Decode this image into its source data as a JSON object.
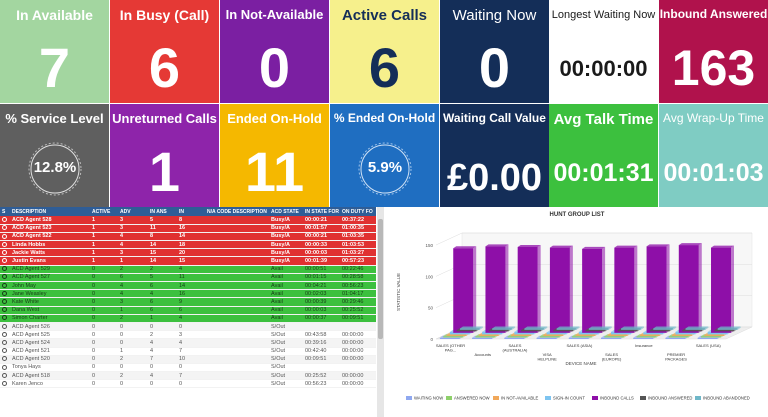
{
  "tiles": [
    {
      "id": "in-available",
      "label": "In Available",
      "value": "7",
      "bg": "#a3d6a0"
    },
    {
      "id": "in-busy",
      "label": "In Busy (Call)",
      "value": "6",
      "bg": "#e53935"
    },
    {
      "id": "in-not-available",
      "label": "In Not-Available",
      "value": "0",
      "bg": "#7b1fa2"
    },
    {
      "id": "active-calls",
      "label": "Active Calls",
      "value": "6",
      "bg": "#f6f08c"
    },
    {
      "id": "waiting-now",
      "label": "Waiting Now",
      "value": "0",
      "bg": "#142e58"
    },
    {
      "id": "longest-waiting-now",
      "label": "Longest Waiting Now",
      "value": "00:00:00",
      "bg": "#ffffff"
    },
    {
      "id": "inbound-answered",
      "label": "Inbound Answered",
      "value": "163",
      "bg": "#b0124c"
    },
    {
      "id": "service-level",
      "label": "% Service Level",
      "value": "12.8%",
      "bg": "#5f5f5f"
    },
    {
      "id": "unreturned-calls",
      "label": "Unreturned Calls",
      "value": "1",
      "bg": "#8e24aa"
    },
    {
      "id": "ended-on-hold",
      "label": "Ended On-Hold",
      "value": "11",
      "bg": "#f5b800"
    },
    {
      "id": "ended-on-hold-pct",
      "label": "% Ended On-Hold",
      "value": "5.9%",
      "bg": "#1f6ec1"
    },
    {
      "id": "waiting-call-value",
      "label": "Waiting Call Value",
      "value": "£0.00",
      "bg": "#142e58"
    },
    {
      "id": "avg-talk-time",
      "label": "Avg Talk Time",
      "value": "00:01:31",
      "bg": "#3cc03e"
    },
    {
      "id": "avg-wrap-up-time",
      "label": "Avg Wrap-Up Time",
      "value": "00:01:03",
      "bg": "#7fccc3"
    }
  ],
  "table": {
    "columns": [
      "S",
      "DESCRIPTION",
      "ACTIVE",
      "ADV",
      "IN ANS",
      "IN",
      "N/A CODE DESCRIPTION",
      "ACD STATE",
      "IN STATE FOR",
      "ON DUTY FO"
    ],
    "rows": [
      {
        "state": "busy",
        "cells": [
          "",
          "ACD Agent 528",
          "1",
          "3",
          "5",
          "8",
          "",
          "Busy/A",
          "00:00:21",
          "00:37:22"
        ]
      },
      {
        "state": "busy",
        "cells": [
          "",
          "ACD Agent 523",
          "1",
          "3",
          "11",
          "16",
          "",
          "Busy/A",
          "00:01:57",
          "01:00:35"
        ]
      },
      {
        "state": "busy",
        "cells": [
          "",
          "ACD Agent 522",
          "1",
          "4",
          "8",
          "14",
          "",
          "Busy/A",
          "00:00:21",
          "01:03:35"
        ]
      },
      {
        "state": "busy",
        "cells": [
          "",
          "Linda Hobbs",
          "1",
          "4",
          "14",
          "18",
          "",
          "Busy/A",
          "00:00:33",
          "01:03:53"
        ]
      },
      {
        "state": "busy",
        "cells": [
          "",
          "Jackie Watts",
          "1",
          "3",
          "15",
          "20",
          "",
          "Busy/A",
          "00:00:03",
          "01:03:27"
        ]
      },
      {
        "state": "busy",
        "cells": [
          "",
          "Justin Evans",
          "1",
          "1",
          "14",
          "15",
          "",
          "Busy/A",
          "00:01:39",
          "00:57:23"
        ]
      },
      {
        "state": "avail",
        "cells": [
          "",
          "ACD Agent 529",
          "0",
          "2",
          "2",
          "4",
          "",
          "Avail",
          "00:00:51",
          "00:22:46"
        ]
      },
      {
        "state": "avail",
        "cells": [
          "",
          "ACD Agent 527",
          "0",
          "6",
          "5",
          "11",
          "",
          "Avail",
          "00:01:15",
          "00:28:58"
        ]
      },
      {
        "state": "avail",
        "cells": [
          "",
          "John May",
          "0",
          "4",
          "6",
          "14",
          "",
          "Avail",
          "00:04:21",
          "00:56:23"
        ]
      },
      {
        "state": "avail",
        "cells": [
          "",
          "Jane Weasley",
          "0",
          "4",
          "4",
          "16",
          "",
          "Avail",
          "00:02:03",
          "01:04:17"
        ]
      },
      {
        "state": "avail",
        "cells": [
          "",
          "Kate White",
          "0",
          "3",
          "6",
          "9",
          "",
          "Avail",
          "00:00:39",
          "00:29:46"
        ]
      },
      {
        "state": "avail",
        "cells": [
          "",
          "Dana West",
          "0",
          "1",
          "6",
          "6",
          "",
          "Avail",
          "00:00:03",
          "00:25:52"
        ]
      },
      {
        "state": "avail",
        "cells": [
          "",
          "Simon Charter",
          "0",
          "2",
          "1",
          "4",
          "",
          "Avail",
          "00:00:37",
          "00:09:51"
        ]
      },
      {
        "state": "out",
        "cells": [
          "",
          "ACD Agent 526",
          "0",
          "0",
          "0",
          "0",
          "",
          "S/Out",
          "",
          ""
        ]
      },
      {
        "state": "out",
        "cells": [
          "",
          "ACD Agent 525",
          "0",
          "0",
          "2",
          "3",
          "",
          "S/Out",
          "00:43:58",
          "00:00:00"
        ]
      },
      {
        "state": "out",
        "cells": [
          "",
          "ACD Agent 524",
          "0",
          "0",
          "4",
          "4",
          "",
          "S/Out",
          "00:39:16",
          "00:00:00"
        ]
      },
      {
        "state": "out",
        "cells": [
          "",
          "ACD Agent 521",
          "0",
          "1",
          "4",
          "7",
          "",
          "S/Out",
          "00:42:40",
          "00:00:00"
        ]
      },
      {
        "state": "out",
        "cells": [
          "",
          "ACD Agent 520",
          "0",
          "2",
          "7",
          "10",
          "",
          "S/Out",
          "00:09:51",
          "00:00:00"
        ]
      },
      {
        "state": "out",
        "cells": [
          "",
          "Tonya Hays",
          "0",
          "0",
          "0",
          "0",
          "",
          "S/Out",
          "",
          ""
        ]
      },
      {
        "state": "out",
        "cells": [
          "",
          "ACD Agent 518",
          "0",
          "2",
          "4",
          "7",
          "",
          "S/Out",
          "00:25:52",
          "00:00:00"
        ]
      },
      {
        "state": "out",
        "cells": [
          "",
          "Karen Jenco",
          "0",
          "0",
          "0",
          "0",
          "",
          "S/Out",
          "00:56:23",
          "00:00:00"
        ]
      }
    ]
  },
  "chart_data": {
    "type": "bar",
    "title": "HUNT GROUP LIST",
    "xlabel": "DEVICE NAME",
    "ylabel": "STATISTIC VALUE",
    "ylim": [
      0,
      150
    ],
    "yticks": [
      0,
      50,
      100,
      150
    ],
    "categories": [
      "SALES (OTHER PAG...",
      "Accounts",
      "SALES (AUSTRALIA)",
      "VISA HELPLINE",
      "SALES (ASIA)",
      "SALES (EUROPE)",
      "Insurance",
      "PREMIER PACKAGES",
      "SALES (USA)"
    ],
    "series": [
      {
        "name": "WAITING NOW",
        "color": "#8fa8f0",
        "values": [
          0,
          0,
          0,
          0,
          0,
          0,
          0,
          0,
          0
        ]
      },
      {
        "name": "ANSWERED NOW",
        "color": "#8ed06a",
        "values": [
          1,
          1,
          1,
          0,
          1,
          1,
          0,
          0,
          1
        ]
      },
      {
        "name": "IN NOT-AVAILABLE",
        "color": "#f1a85a",
        "values": [
          0,
          0,
          0,
          0,
          0,
          0,
          0,
          0,
          0
        ]
      },
      {
        "name": "SIGN-IN COUNT",
        "color": "#7ec4f0",
        "values": [
          4,
          4,
          4,
          3,
          4,
          4,
          3,
          4,
          4
        ]
      },
      {
        "name": "INBOUND CALLS",
        "color": "#8e0fa8",
        "values": [
          135,
          138,
          137,
          136,
          134,
          136,
          138,
          140,
          136
        ]
      },
      {
        "name": "INBOUND ANSWERED",
        "color": "#555555",
        "values": [
          0,
          0,
          0,
          0,
          0,
          0,
          0,
          0,
          0
        ]
      },
      {
        "name": "INBOUND ABANDONED",
        "color": "#6fb7c8",
        "values": [
          0,
          0,
          0,
          0,
          0,
          0,
          0,
          0,
          0
        ]
      }
    ],
    "legend": "bottom"
  }
}
